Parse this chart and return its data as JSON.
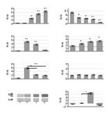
{
  "background_color": "#ffffff",
  "bar_color": "#999999",
  "grid_color": "#dddddd",
  "panels": [
    {
      "type": "bar",
      "row": 0,
      "col": 0,
      "values": [
        0.3,
        0.4,
        2.8,
        5.2,
        6.8
      ],
      "errors": [
        0.05,
        0.06,
        0.25,
        0.3,
        0.35
      ],
      "ylim": [
        0,
        8
      ],
      "yticks": [
        0,
        2,
        4,
        6,
        8
      ],
      "ylabel": "Fold",
      "n_bars": 5,
      "sig_stars": [
        [
          2,
          "**"
        ],
        [
          3,
          "***"
        ],
        [
          4,
          "***"
        ]
      ]
    },
    {
      "type": "bar",
      "row": 0,
      "col": 1,
      "values": [
        10.5,
        5.8,
        5.0,
        4.2,
        1.2
      ],
      "errors": [
        0.6,
        0.35,
        0.3,
        0.3,
        0.15
      ],
      "ylim": [
        0,
        14
      ],
      "yticks": [
        0,
        4,
        8,
        12
      ],
      "ylabel": "Fold",
      "n_bars": 5,
      "sig_stars": [
        [
          1,
          "**"
        ],
        [
          2,
          "**"
        ],
        [
          3,
          "***"
        ],
        [
          4,
          "***"
        ]
      ]
    },
    {
      "type": "bar",
      "row": 1,
      "col": 0,
      "values": [
        0.3,
        5.2,
        3.5,
        0.6
      ],
      "errors": [
        0.05,
        0.4,
        0.35,
        0.08
      ],
      "ylim": [
        0,
        8
      ],
      "yticks": [
        0,
        2,
        4,
        6,
        8
      ],
      "ylabel": "Fold",
      "n_bars": 4,
      "sig_stars": [
        [
          1,
          "***"
        ],
        [
          2,
          "***"
        ]
      ]
    },
    {
      "type": "bar",
      "row": 1,
      "col": 1,
      "values": [
        1.8,
        2.5,
        3.2,
        3.5
      ],
      "errors": [
        0.15,
        0.2,
        0.25,
        0.28
      ],
      "ylim": [
        0,
        5
      ],
      "yticks": [
        0,
        1,
        2,
        3,
        4,
        5
      ],
      "ylabel": "Fold",
      "n_bars": 4,
      "hline": 1.5,
      "sig_stars": [
        [
          1,
          "**"
        ],
        [
          2,
          "**"
        ],
        [
          3,
          "**"
        ]
      ]
    },
    {
      "type": "bar",
      "row": 2,
      "col": 0,
      "values": [
        0.4,
        5.8,
        2.2,
        1.9
      ],
      "errors": [
        0.06,
        0.45,
        0.25,
        0.22
      ],
      "ylim": [
        0,
        8
      ],
      "yticks": [
        0,
        2,
        4,
        6,
        8
      ],
      "ylabel": "Fold",
      "n_bars": 4,
      "sig_bracket": [
        [
          1,
          3,
          7.0,
          "***"
        ],
        [
          1,
          2,
          6.0,
          "**"
        ]
      ]
    },
    {
      "type": "bar",
      "row": 2,
      "col": 1,
      "values": [
        0.7,
        0.8,
        0.75,
        0.8,
        0.72
      ],
      "errors": [
        0.06,
        0.07,
        0.06,
        0.07,
        0.06
      ],
      "ylim": [
        0,
        3
      ],
      "yticks": [
        0,
        1,
        2,
        3
      ],
      "ylabel": "Fold",
      "n_bars": 5
    },
    {
      "type": "wb",
      "row": 3,
      "col": 0
    },
    {
      "type": "bar",
      "row": 3,
      "col": 1,
      "values": [
        -0.5,
        0.3,
        7.2,
        -1.2
      ],
      "errors": [
        0.1,
        0.06,
        0.5,
        0.15
      ],
      "ylim": [
        -2,
        8
      ],
      "yticks": [
        -2,
        0,
        2,
        4,
        6,
        8
      ],
      "ylabel": "Fold",
      "n_bars": 4,
      "sig_bracket": [
        [
          1,
          2,
          6.5,
          "*"
        ]
      ]
    }
  ]
}
